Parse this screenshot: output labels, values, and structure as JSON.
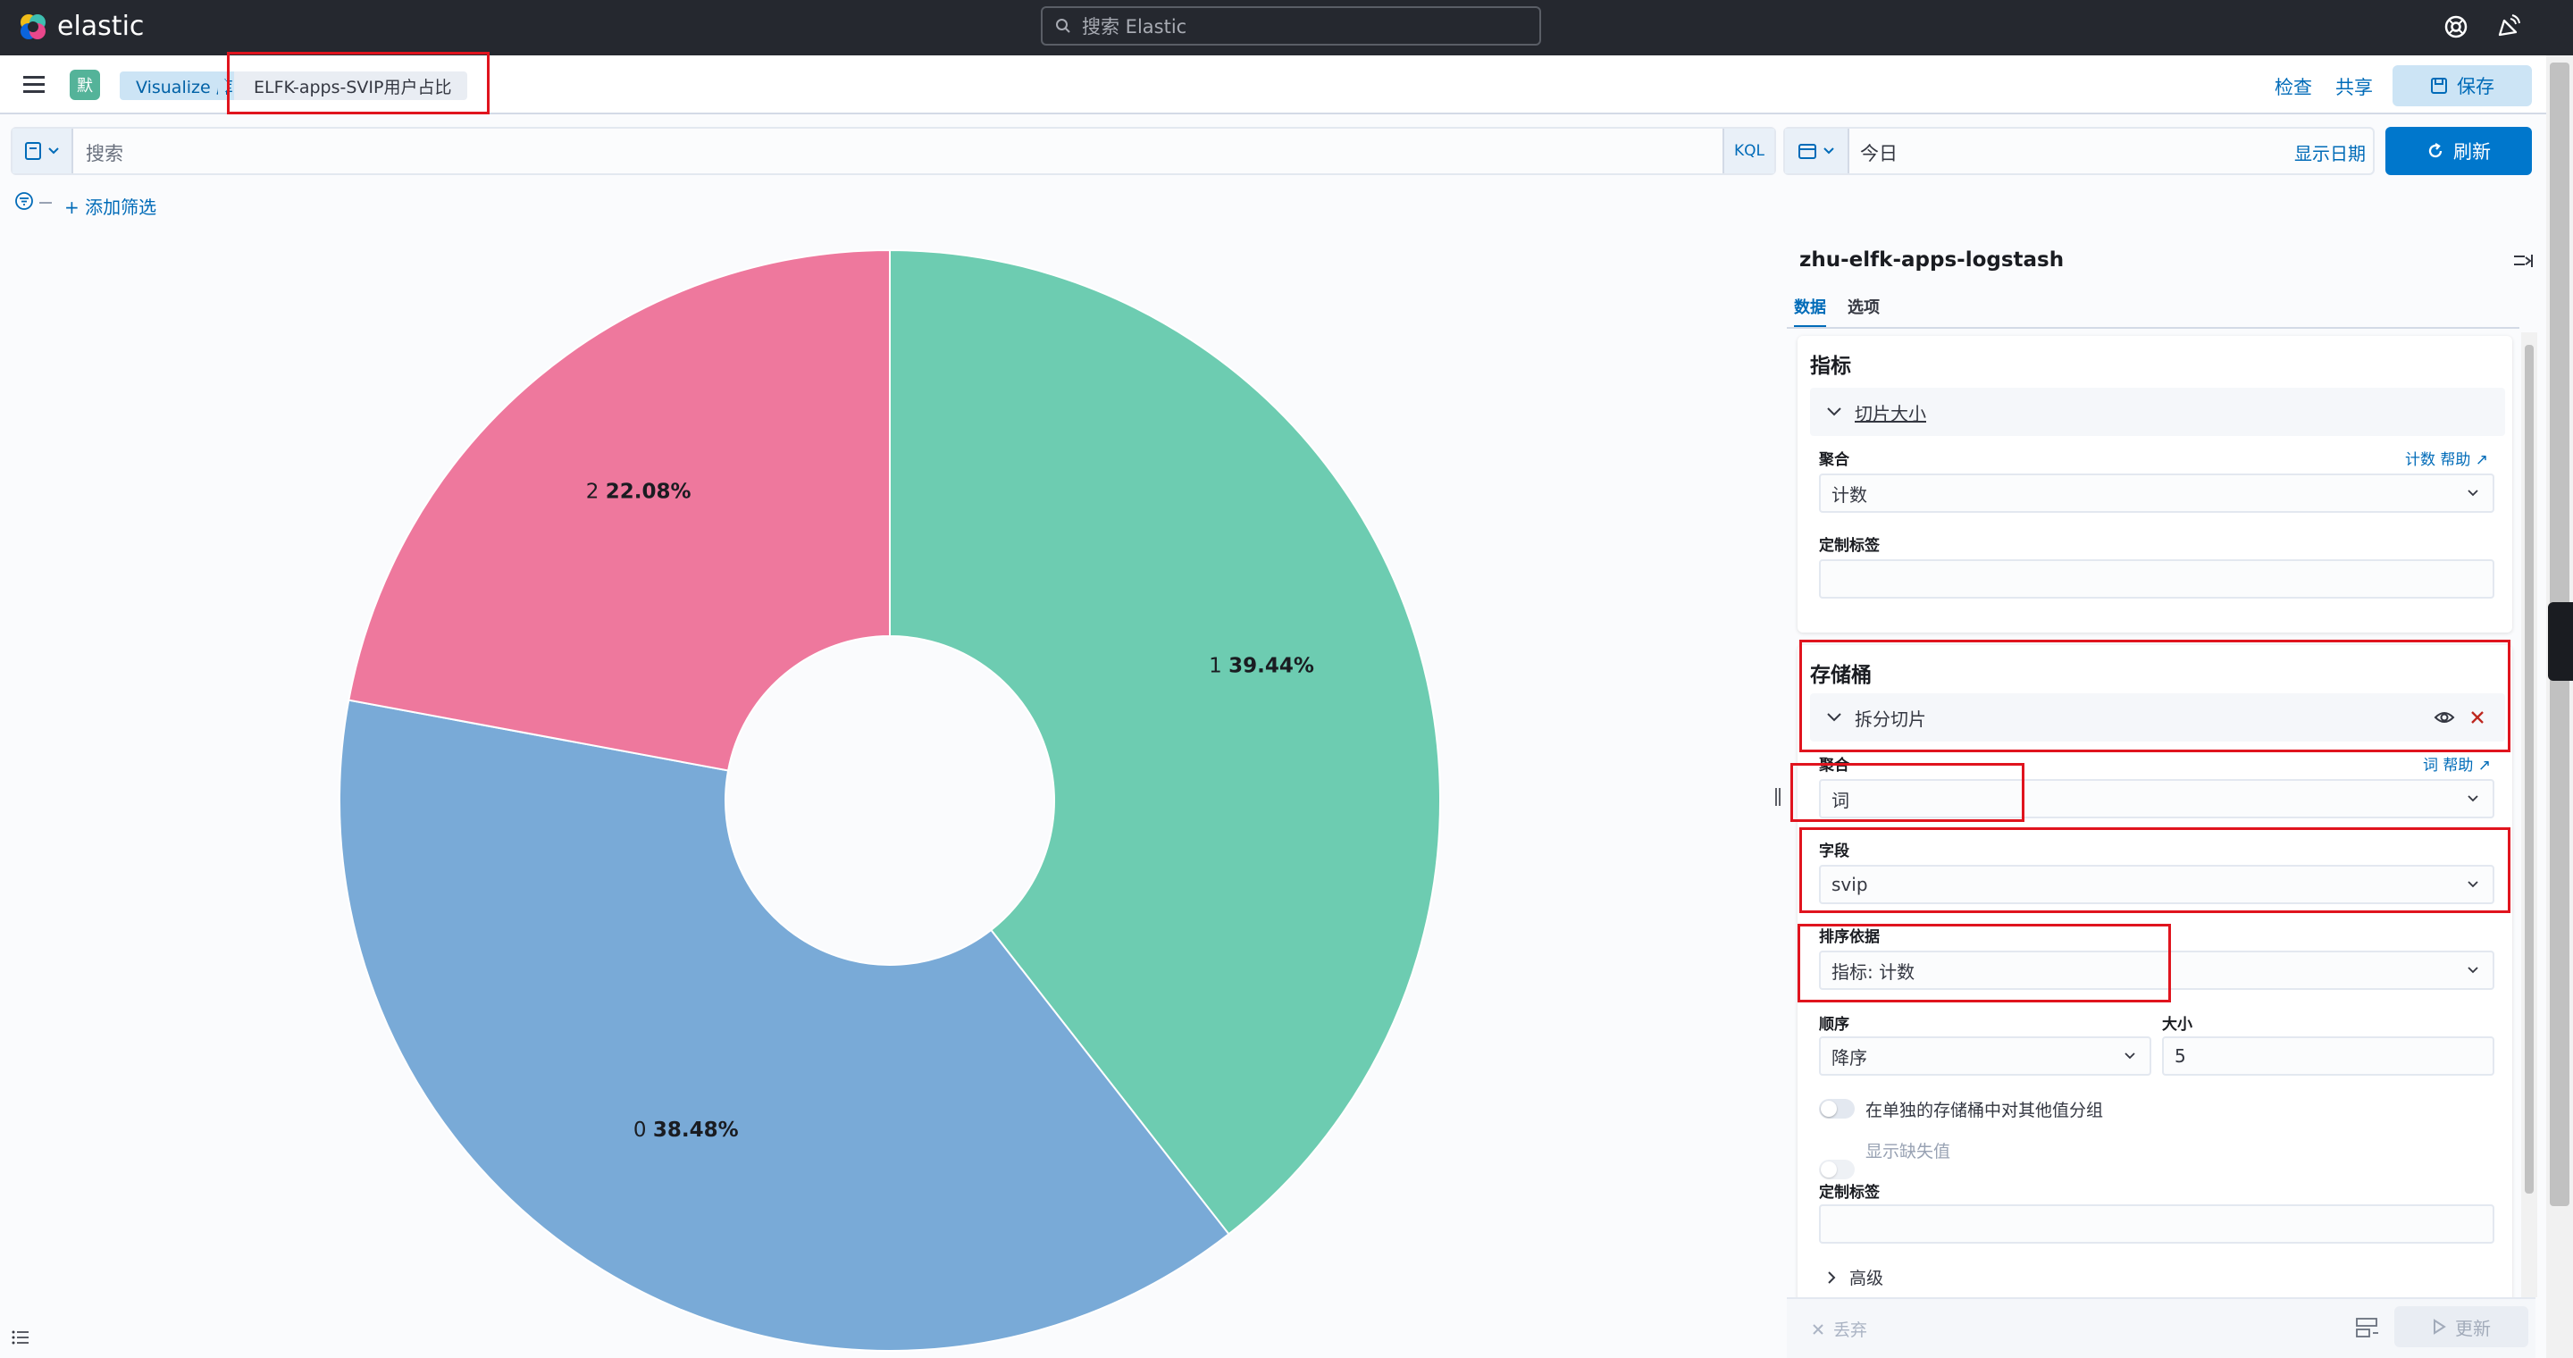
{
  "header": {
    "logo_text": "elastic",
    "search_placeholder": "搜索 Elastic"
  },
  "breadcrumb": {
    "space_initial": "默",
    "items": [
      "Visualize 库",
      "ELFK-apps-SVIP用户占比"
    ]
  },
  "actions": {
    "inspect": "检查",
    "share": "共享",
    "save": "保存"
  },
  "query": {
    "placeholder": "搜索",
    "language": "KQL",
    "date": "今日",
    "show_dates": "显示日期",
    "refresh": "刷新",
    "add_filter": "+ 添加筛选"
  },
  "chart_data": {
    "type": "pie",
    "donut": true,
    "categories": [
      "1",
      "0",
      "2"
    ],
    "values": [
      39.44,
      38.48,
      22.08
    ],
    "labels": [
      "1 39.44%",
      "0 38.48%",
      "2 22.08%"
    ],
    "colors": [
      "#6dccb1",
      "#79aad7",
      "#ee789d"
    ]
  },
  "panel": {
    "index_pattern": "zhu-elfk-apps-logstash",
    "tabs": [
      "数据",
      "选项"
    ],
    "metrics": {
      "title": "指标",
      "item": "切片大小",
      "agg_label": "聚合",
      "agg_help": "计数 帮助",
      "agg_value": "计数",
      "custom_label": "定制标签"
    },
    "buckets": {
      "title": "存储桶",
      "item": "拆分切片",
      "agg_label": "聚合",
      "agg_help": "词 帮助",
      "agg_value": "词",
      "field_label": "字段",
      "field_value": "svip",
      "order_by_label": "排序依据",
      "order_by_value": "指标: 计数",
      "order_label": "顺序",
      "order_value": "降序",
      "size_label": "大小",
      "size_value": "5",
      "group_other": "在单独的存储桶中对其他值分组",
      "show_missing": "显示缺失值",
      "custom_label": "定制标签",
      "advanced": "高级"
    },
    "discard": "丢弃",
    "update": "更新"
  }
}
